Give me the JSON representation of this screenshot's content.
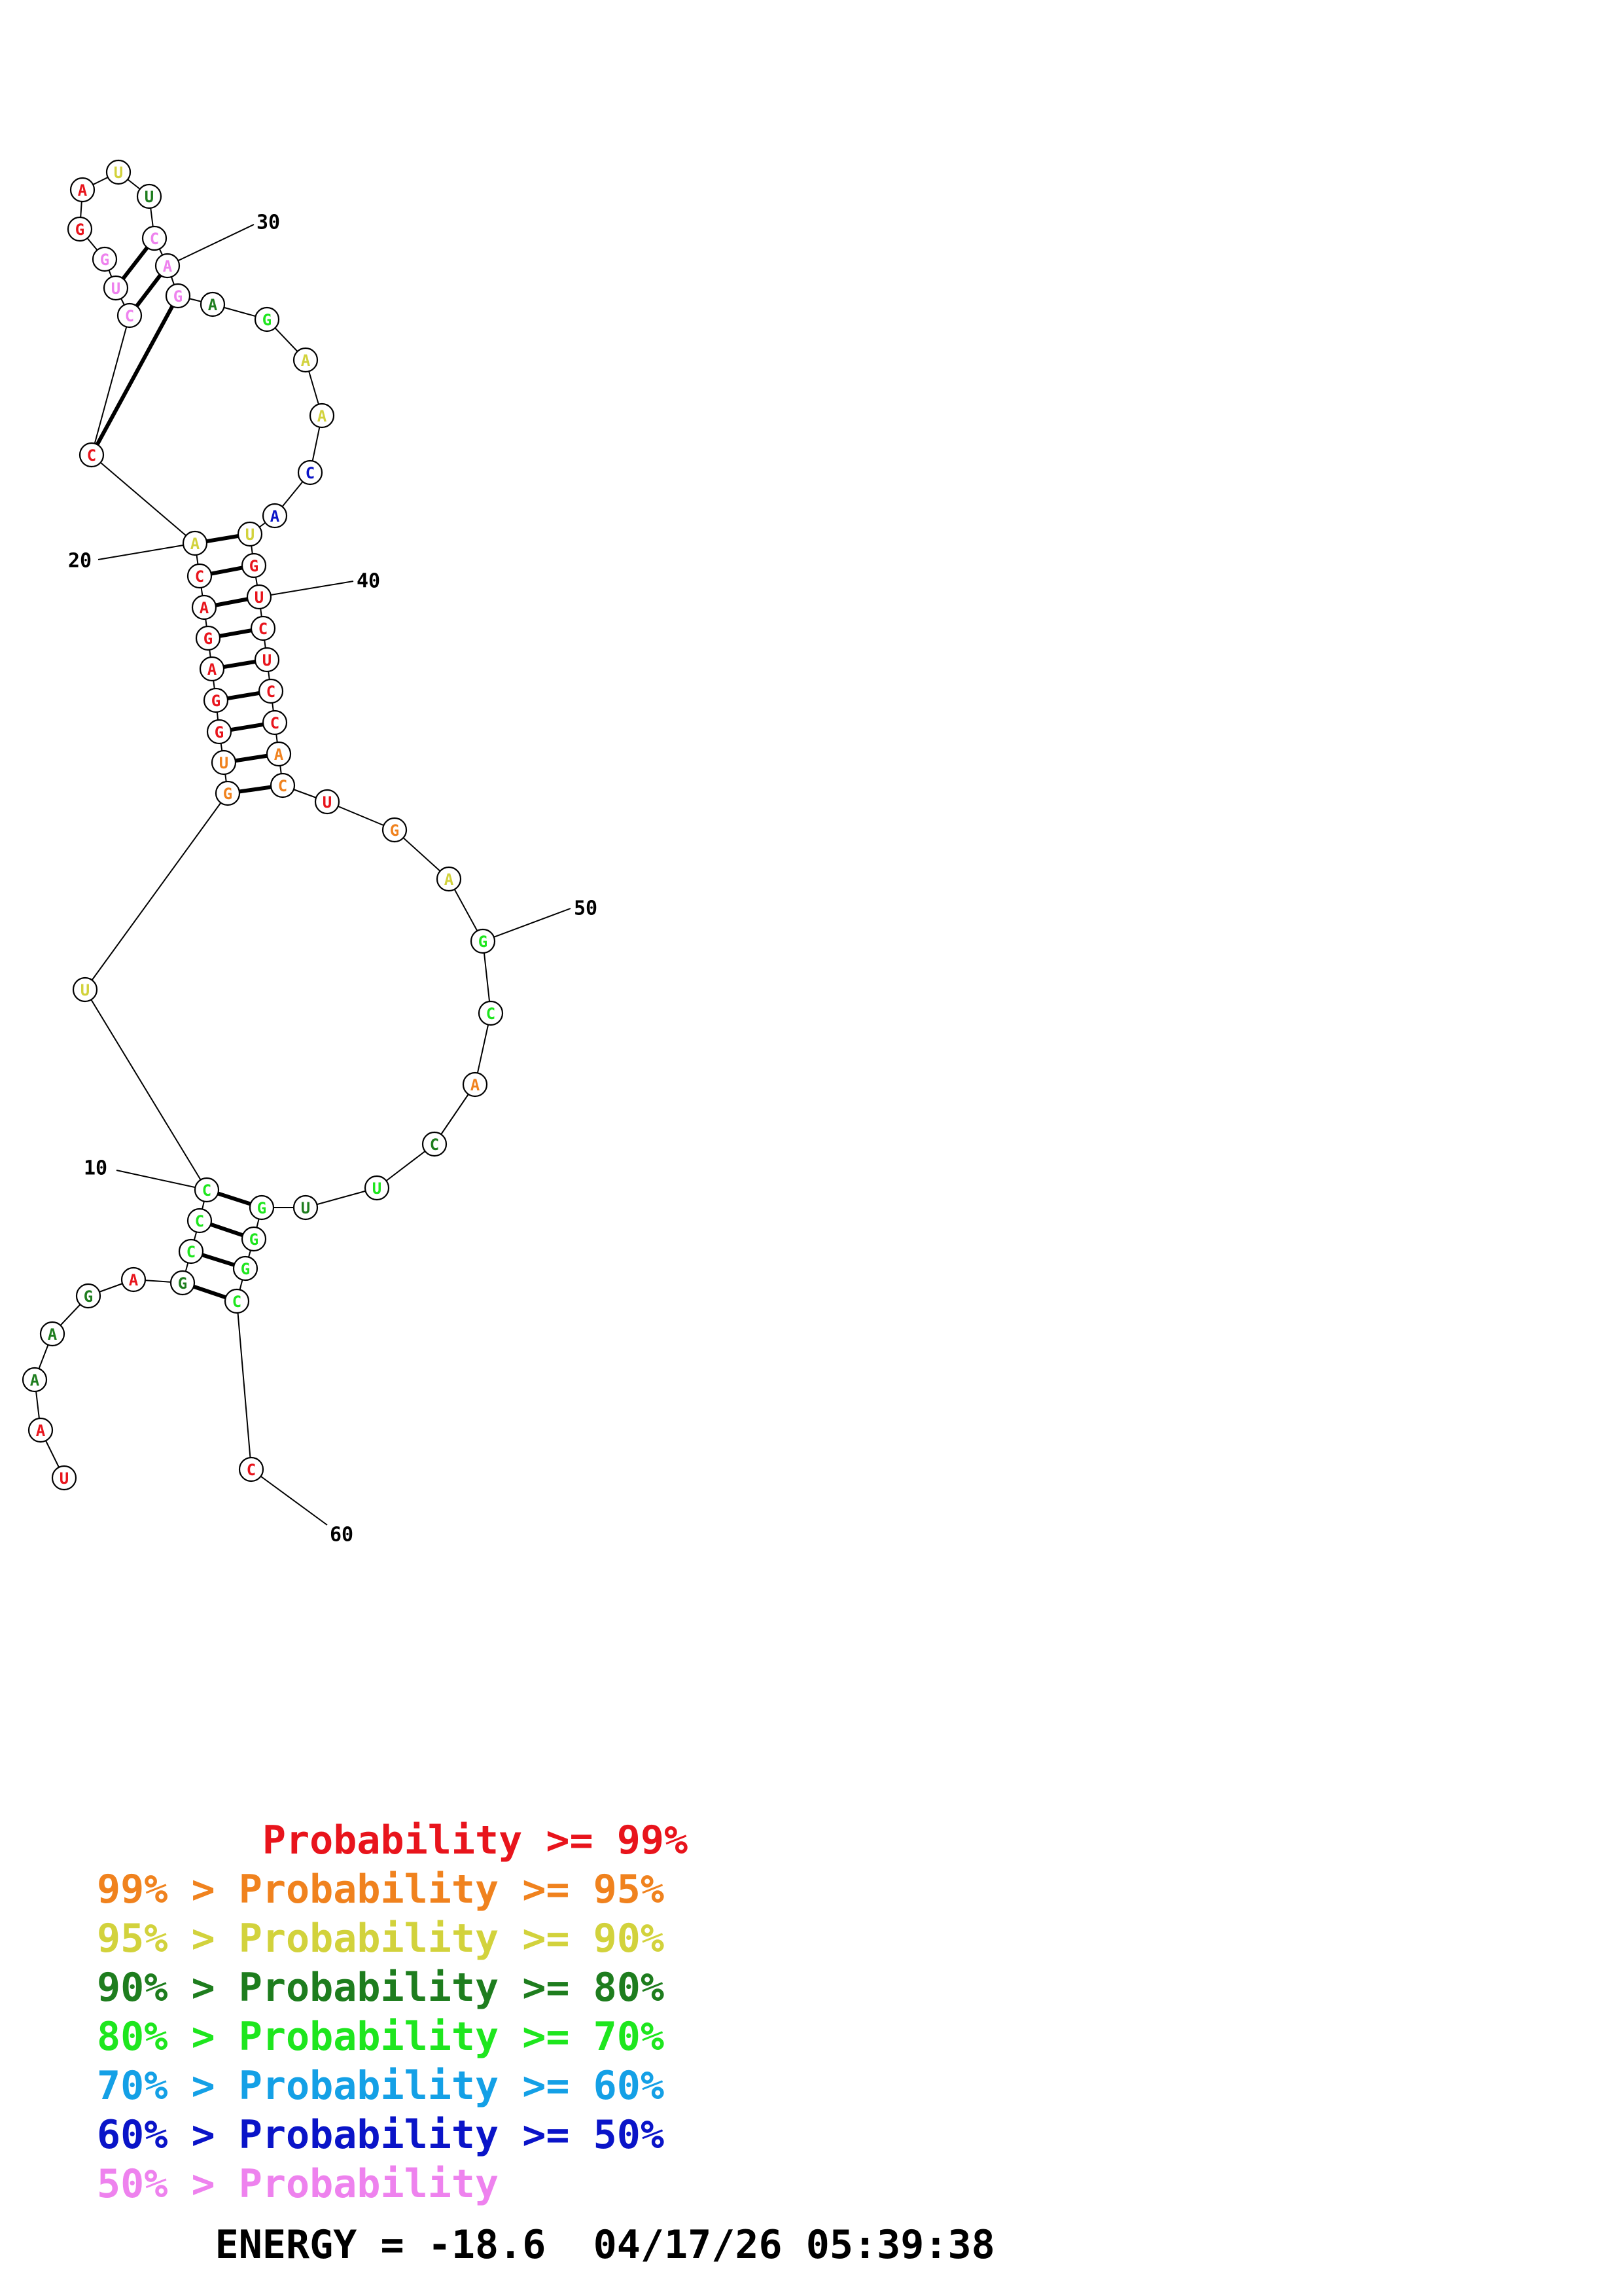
{
  "colors": {
    "p99": "#e8141c",
    "p95": "#f0821e",
    "p90": "#d2d23c",
    "p80": "#1e7d1e",
    "p70": "#1ee61e",
    "p60": "#14a0e6",
    "p50": "#0a14c8",
    "p0": "#ee82ee"
  },
  "nucleotides": [
    {
      "n": 1,
      "base": "U",
      "cls": "p99"
    },
    {
      "n": 2,
      "base": "A",
      "cls": "p99"
    },
    {
      "n": 3,
      "base": "A",
      "cls": "p80"
    },
    {
      "n": 4,
      "base": "A",
      "cls": "p80"
    },
    {
      "n": 5,
      "base": "G",
      "cls": "p80"
    },
    {
      "n": 6,
      "base": "A",
      "cls": "p99"
    },
    {
      "n": 7,
      "base": "G",
      "cls": "p80"
    },
    {
      "n": 8,
      "base": "C",
      "cls": "p70"
    },
    {
      "n": 9,
      "base": "C",
      "cls": "p70"
    },
    {
      "n": 10,
      "base": "C",
      "cls": "p70"
    },
    {
      "n": 11,
      "base": "U",
      "cls": "p90"
    },
    {
      "n": 12,
      "base": "G",
      "cls": "p95"
    },
    {
      "n": 13,
      "base": "U",
      "cls": "p95"
    },
    {
      "n": 14,
      "base": "G",
      "cls": "p99"
    },
    {
      "n": 15,
      "base": "G",
      "cls": "p99"
    },
    {
      "n": 16,
      "base": "A",
      "cls": "p99"
    },
    {
      "n": 17,
      "base": "G",
      "cls": "p99"
    },
    {
      "n": 18,
      "base": "A",
      "cls": "p99"
    },
    {
      "n": 19,
      "base": "C",
      "cls": "p99"
    },
    {
      "n": 20,
      "base": "A",
      "cls": "p90"
    },
    {
      "n": 21,
      "base": "C",
      "cls": "p99"
    },
    {
      "n": 22,
      "base": "C",
      "cls": "p0"
    },
    {
      "n": 23,
      "base": "U",
      "cls": "p0"
    },
    {
      "n": 24,
      "base": "G",
      "cls": "p0"
    },
    {
      "n": 25,
      "base": "G",
      "cls": "p99"
    },
    {
      "n": 26,
      "base": "A",
      "cls": "p99"
    },
    {
      "n": 27,
      "base": "U",
      "cls": "p90"
    },
    {
      "n": 28,
      "base": "U",
      "cls": "p80"
    },
    {
      "n": 29,
      "base": "C",
      "cls": "p0"
    },
    {
      "n": 30,
      "base": "A",
      "cls": "p0"
    },
    {
      "n": 31,
      "base": "G",
      "cls": "p0"
    },
    {
      "n": 32,
      "base": "A",
      "cls": "p80"
    },
    {
      "n": 33,
      "base": "G",
      "cls": "p70"
    },
    {
      "n": 34,
      "base": "A",
      "cls": "p90"
    },
    {
      "n": 35,
      "base": "A",
      "cls": "p90"
    },
    {
      "n": 36,
      "base": "C",
      "cls": "p50"
    },
    {
      "n": 37,
      "base": "A",
      "cls": "p50"
    },
    {
      "n": 38,
      "base": "U",
      "cls": "p90"
    },
    {
      "n": 39,
      "base": "G",
      "cls": "p99"
    },
    {
      "n": 40,
      "base": "U",
      "cls": "p99"
    },
    {
      "n": 41,
      "base": "C",
      "cls": "p99"
    },
    {
      "n": 42,
      "base": "U",
      "cls": "p99"
    },
    {
      "n": 43,
      "base": "C",
      "cls": "p99"
    },
    {
      "n": 44,
      "base": "C",
      "cls": "p99"
    },
    {
      "n": 45,
      "base": "A",
      "cls": "p95"
    },
    {
      "n": 46,
      "base": "C",
      "cls": "p95"
    },
    {
      "n": 47,
      "base": "U",
      "cls": "p99"
    },
    {
      "n": 48,
      "base": "G",
      "cls": "p95"
    },
    {
      "n": 49,
      "base": "A",
      "cls": "p90"
    },
    {
      "n": 50,
      "base": "G",
      "cls": "p70"
    },
    {
      "n": 51,
      "base": "C",
      "cls": "p70"
    },
    {
      "n": 52,
      "base": "A",
      "cls": "p95"
    },
    {
      "n": 53,
      "base": "C",
      "cls": "p80"
    },
    {
      "n": 54,
      "base": "U",
      "cls": "p70"
    },
    {
      "n": 55,
      "base": "U",
      "cls": "p80"
    },
    {
      "n": 56,
      "base": "G",
      "cls": "p70"
    },
    {
      "n": 57,
      "base": "G",
      "cls": "p70"
    },
    {
      "n": 58,
      "base": "G",
      "cls": "p70"
    },
    {
      "n": 59,
      "base": "C",
      "cls": "p70"
    },
    {
      "n": 60,
      "base": "C",
      "cls": "p99"
    }
  ],
  "pairs": [
    [
      7,
      59
    ],
    [
      8,
      58
    ],
    [
      9,
      57
    ],
    [
      10,
      56
    ],
    [
      12,
      46
    ],
    [
      13,
      45
    ],
    [
      14,
      44
    ],
    [
      15,
      43
    ],
    [
      16,
      42
    ],
    [
      17,
      41
    ],
    [
      18,
      40
    ],
    [
      19,
      39
    ],
    [
      20,
      38
    ],
    [
      21,
      31
    ],
    [
      22,
      30
    ],
    [
      23,
      29
    ]
  ],
  "position_labels": [
    {
      "n": 10,
      "text": "10"
    },
    {
      "n": 20,
      "text": "20"
    },
    {
      "n": 30,
      "text": "30"
    },
    {
      "n": 40,
      "text": "40"
    },
    {
      "n": 50,
      "text": "50"
    },
    {
      "n": 60,
      "text": "60"
    }
  ],
  "legend": [
    {
      "prefix": "       ",
      "text": "Probability >= 99%",
      "color": "#e8141c"
    },
    {
      "prefix": "99% > ",
      "text": "Probability >= 95%",
      "color": "#f0821e"
    },
    {
      "prefix": "95% > ",
      "text": "Probability >= 90%",
      "color": "#d2d23c"
    },
    {
      "prefix": "90% > ",
      "text": "Probability >= 80%",
      "color": "#1e7d1e"
    },
    {
      "prefix": "80% > ",
      "text": "Probability >= 70%",
      "color": "#1ee61e"
    },
    {
      "prefix": "70% > ",
      "text": "Probability >= 60%",
      "color": "#14a0e6"
    },
    {
      "prefix": "60% > ",
      "text": "Probability >= 50%",
      "color": "#0a14c8"
    },
    {
      "prefix": "50% > ",
      "text": "Probability",
      "color": "#ee82ee"
    }
  ],
  "footer": {
    "energy": "ENERGY = -18.6",
    "timestamp": "04/17/26 05:39:38"
  }
}
